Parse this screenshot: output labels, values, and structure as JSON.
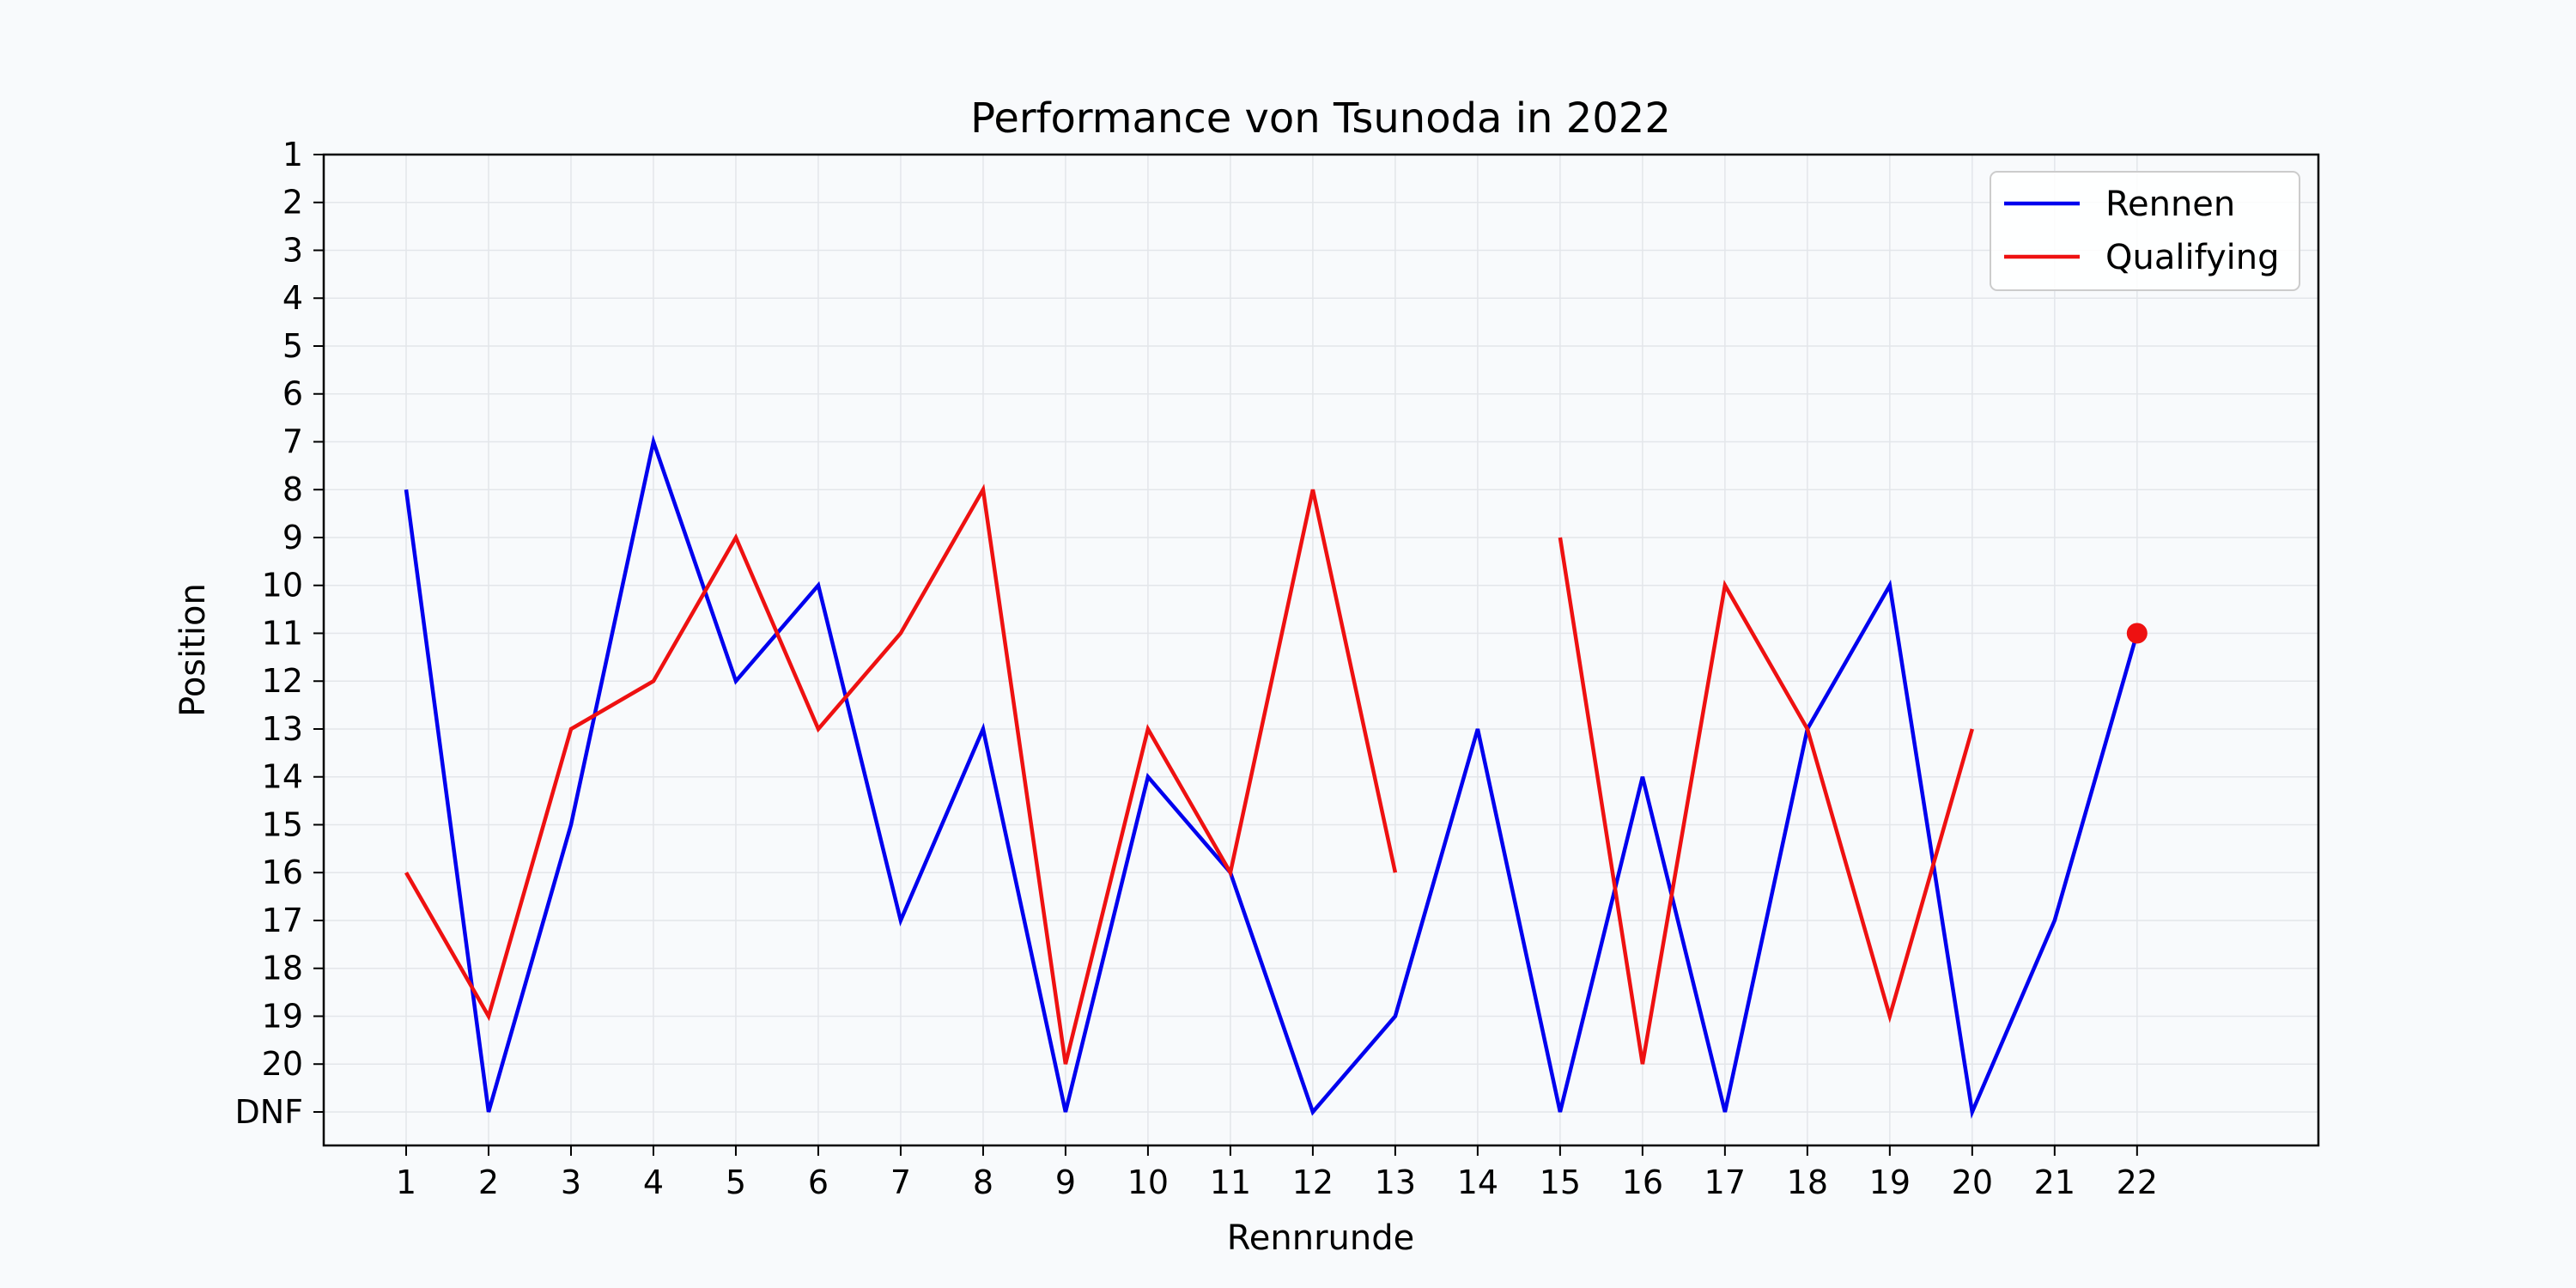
{
  "chart_data": {
    "type": "line",
    "title": "Performance von Tsunoda in 2022",
    "xlabel": "Rennrunde",
    "ylabel": "Position",
    "x": [
      1,
      2,
      3,
      4,
      5,
      6,
      7,
      8,
      9,
      10,
      11,
      12,
      13,
      14,
      15,
      16,
      17,
      18,
      19,
      20,
      21,
      22
    ],
    "x_tick_labels": [
      "1",
      "2",
      "3",
      "4",
      "5",
      "6",
      "7",
      "8",
      "9",
      "10",
      "11",
      "12",
      "13",
      "14",
      "15",
      "16",
      "17",
      "18",
      "19",
      "20",
      "21",
      "22"
    ],
    "y_tick_labels": [
      "1",
      "2",
      "3",
      "4",
      "5",
      "6",
      "7",
      "8",
      "9",
      "10",
      "11",
      "12",
      "13",
      "14",
      "15",
      "16",
      "17",
      "18",
      "19",
      "20",
      "DNF"
    ],
    "y_tick_values": [
      1,
      2,
      3,
      4,
      5,
      6,
      7,
      8,
      9,
      10,
      11,
      12,
      13,
      14,
      15,
      16,
      17,
      18,
      19,
      20,
      21
    ],
    "y_inverted": true,
    "xlim": [
      0,
      24.2
    ],
    "ylim": [
      21.7,
      1
    ],
    "grid": true,
    "legend_position": "top-right",
    "series": [
      {
        "name": "Rennen",
        "color": "#0000ee",
        "values": [
          8,
          21,
          15,
          7,
          12,
          10,
          17,
          13,
          21,
          14,
          16,
          21,
          19,
          13,
          21,
          14,
          21,
          13,
          10,
          21,
          17,
          11
        ]
      },
      {
        "name": "Qualifying",
        "color": "#ee1111",
        "values": [
          16,
          19,
          13,
          12,
          9,
          13,
          11,
          8,
          20,
          13,
          16,
          8,
          16,
          null,
          9,
          20,
          10,
          13,
          19,
          13,
          null,
          null
        ]
      }
    ],
    "markers": [
      {
        "x": 22,
        "y": 11,
        "color": "#ee1111"
      }
    ]
  }
}
